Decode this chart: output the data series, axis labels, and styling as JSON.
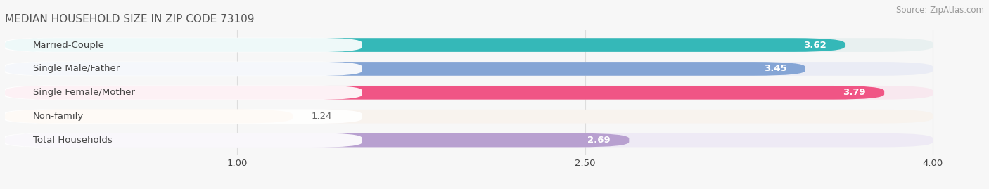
{
  "title": "MEDIAN HOUSEHOLD SIZE IN ZIP CODE 73109",
  "source": "Source: ZipAtlas.com",
  "categories": [
    "Married-Couple",
    "Single Male/Father",
    "Single Female/Mother",
    "Non-family",
    "Total Households"
  ],
  "values": [
    3.62,
    3.45,
    3.79,
    1.24,
    2.69
  ],
  "bar_colors": [
    "#35b8b8",
    "#85a5d5",
    "#f05585",
    "#f5c89a",
    "#b8a0d0"
  ],
  "bar_bg_colors": [
    "#e8f0f0",
    "#eaecf5",
    "#f8e8ef",
    "#f8f3ee",
    "#eeeaf5"
  ],
  "label_bg_color": "#ffffff",
  "xlim_min": 0,
  "xlim_max": 4.22,
  "data_max": 4.0,
  "xticks": [
    1.0,
    2.5,
    4.0
  ],
  "label_fontsize": 9.5,
  "value_fontsize": 9.5,
  "title_fontsize": 11,
  "source_fontsize": 8.5,
  "title_color": "#555555",
  "source_color": "#999999",
  "label_color": "#444444",
  "value_color_white": "#ffffff",
  "value_color_dark": "#666666",
  "bar_height": 0.58,
  "background_color": "#f7f7f7",
  "grid_color": "#dddddd",
  "white_threshold": 2.0
}
